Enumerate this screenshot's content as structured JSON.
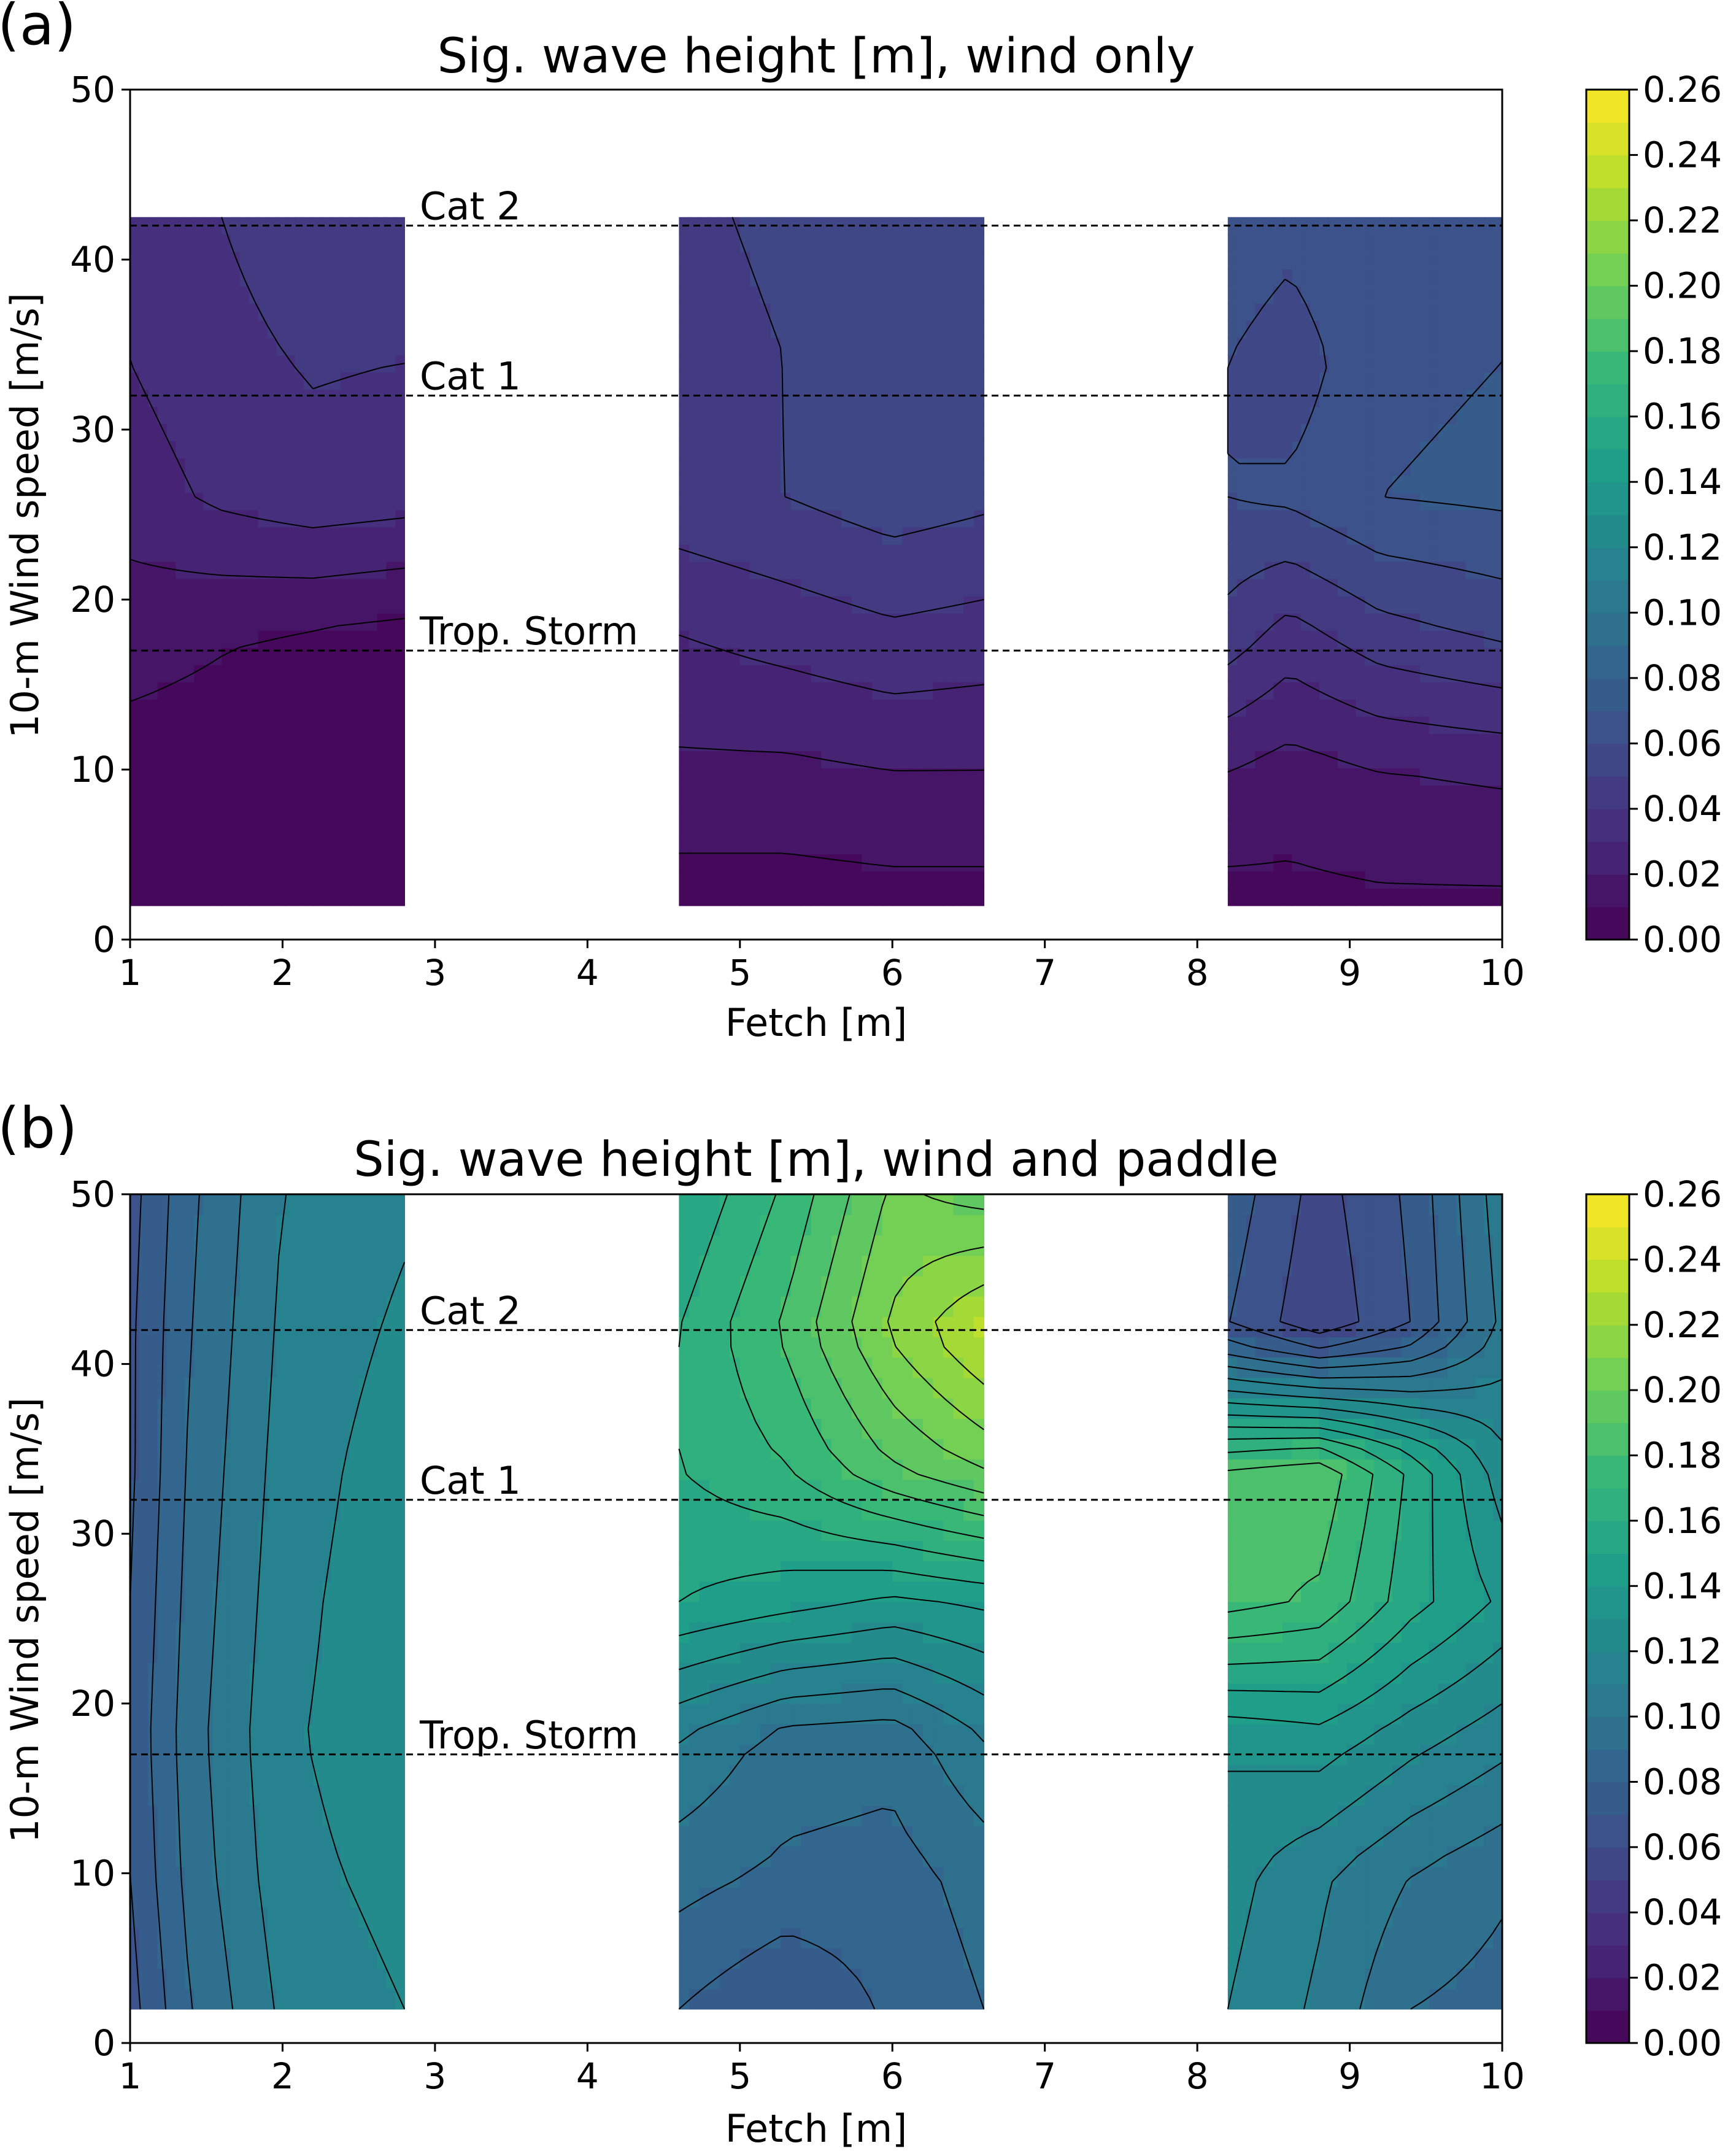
{
  "figure": {
    "colorscale": "viridis"
  },
  "chart_data": [
    {
      "type": "heatmap",
      "panel_label": "(a)",
      "title": "Sig. wave height [m], wind only",
      "xlabel": "Fetch [m]",
      "ylabel": "10-m Wind speed [m/s]",
      "xlim": [
        1,
        10
      ],
      "ylim": [
        0,
        50
      ],
      "xticks": [
        1,
        2,
        3,
        4,
        5,
        6,
        7,
        8,
        9,
        10
      ],
      "yticks": [
        0,
        10,
        20,
        30,
        40,
        50
      ],
      "colorbar": {
        "range": [
          0,
          0.26
        ],
        "ticks": [
          "0.00",
          "0.02",
          "0.04",
          "0.06",
          "0.08",
          "0.10",
          "0.12",
          "0.14",
          "0.16",
          "0.18",
          "0.20",
          "0.22",
          "0.24",
          "0.26"
        ]
      },
      "reference_lines": [
        {
          "label": "Cat 2",
          "y": 42
        },
        {
          "label": "Cat 1",
          "y": 32
        },
        {
          "label": "Trop. Storm",
          "y": 17
        }
      ],
      "blocks": [
        {
          "x": [
            1.0,
            1.6,
            2.2,
            2.8
          ],
          "y": [
            2,
            10,
            18,
            26,
            34,
            42.5
          ],
          "values": [
            [
              0.001,
              0.001,
              0.001,
              0.001
            ],
            [
              0.006,
              0.005,
              0.003,
              0.001
            ],
            [
              0.014,
              0.011,
              0.009,
              0.007
            ],
            [
              0.025,
              0.032,
              0.036,
              0.034
            ],
            [
              0.03,
              0.037,
              0.041,
              0.04
            ],
            [
              0.033,
              0.04,
              0.046,
              0.05
            ]
          ]
        },
        {
          "x": [
            4.6,
            5.3,
            6.0,
            6.6
          ],
          "y": [
            2,
            10,
            18,
            26,
            34,
            42.5
          ],
          "values": [
            [
              0.005,
              0.005,
              0.006,
              0.006
            ],
            [
              0.018,
              0.018,
              0.02,
              0.02
            ],
            [
              0.03,
              0.034,
              0.038,
              0.036
            ],
            [
              0.046,
              0.05,
              0.055,
              0.052
            ],
            [
              0.048,
              0.05,
              0.06,
              0.056
            ],
            [
              0.049,
              0.051,
              0.058,
              0.06
            ]
          ]
        },
        {
          "x": [
            8.2,
            8.6,
            9.2,
            10.0
          ],
          "y": [
            2,
            10,
            18,
            26,
            34,
            42.5
          ],
          "values": [
            [
              0.006,
              0.007,
              0.008,
              0.008
            ],
            [
              0.02,
              0.016,
              0.02,
              0.022
            ],
            [
              0.046,
              0.036,
              0.046,
              0.052
            ],
            [
              0.06,
              0.062,
              0.07,
              0.072
            ],
            [
              0.06,
              0.054,
              0.068,
              0.07
            ],
            [
              0.068,
              0.064,
              0.07,
              0.068
            ]
          ]
        }
      ]
    },
    {
      "type": "heatmap",
      "panel_label": "(b)",
      "title": "Sig. wave height [m], wind and paddle",
      "xlabel": "Fetch [m]",
      "ylabel": "10-m Wind speed [m/s]",
      "xlim": [
        1,
        10
      ],
      "ylim": [
        0,
        50
      ],
      "xticks": [
        1,
        2,
        3,
        4,
        5,
        6,
        7,
        8,
        9,
        10
      ],
      "yticks": [
        0,
        10,
        20,
        30,
        40,
        50
      ],
      "colorbar": {
        "range": [
          0,
          0.26
        ],
        "ticks": [
          "0.00",
          "0.02",
          "0.04",
          "0.06",
          "0.08",
          "0.10",
          "0.12",
          "0.14",
          "0.16",
          "0.18",
          "0.20",
          "0.22",
          "0.24",
          "0.26"
        ]
      },
      "reference_lines": [
        {
          "label": "Cat 2",
          "y": 42
        },
        {
          "label": "Cat 1",
          "y": 32
        },
        {
          "label": "Trop. Storm",
          "y": 17
        }
      ],
      "blocks": [
        {
          "x": [
            1.0,
            1.4,
            2.0,
            2.8
          ],
          "y": [
            2,
            10,
            18,
            26,
            34,
            42,
            50
          ],
          "values": [
            [
              0.066,
              0.09,
              0.112,
              0.12
            ],
            [
              0.07,
              0.094,
              0.116,
              0.124
            ],
            [
              0.072,
              0.096,
              0.118,
              0.128
            ],
            [
              0.07,
              0.094,
              0.116,
              0.128
            ],
            [
              0.068,
              0.092,
              0.114,
              0.126
            ],
            [
              0.068,
              0.09,
              0.112,
              0.122
            ],
            [
              0.066,
              0.088,
              0.11,
              0.118
            ]
          ]
        },
        {
          "x": [
            4.6,
            5.3,
            6.0,
            6.6
          ],
          "y": [
            2,
            10,
            18,
            26,
            34,
            42,
            50
          ],
          "values": [
            [
              0.08,
              0.07,
              0.082,
              0.09
            ],
            [
              0.094,
              0.088,
              0.086,
              0.094
            ],
            [
              0.11,
              0.096,
              0.094,
              0.11
            ],
            [
              0.15,
              0.144,
              0.138,
              0.142
            ],
            [
              0.16,
              0.17,
              0.19,
              0.202
            ],
            [
              0.16,
              0.182,
              0.212,
              0.232
            ],
            [
              0.15,
              0.172,
              0.202,
              0.196
            ]
          ]
        },
        {
          "x": [
            8.2,
            8.8,
            9.4,
            10.0
          ],
          "y": [
            2,
            10,
            18,
            26,
            34,
            42,
            50
          ],
          "values": [
            [
              0.12,
              0.108,
              0.09,
              0.086
            ],
            [
              0.124,
              0.112,
              0.1,
              0.092
            ],
            [
              0.132,
              0.136,
              0.124,
              0.114
            ],
            [
              0.184,
              0.178,
              0.154,
              0.138
            ],
            [
              0.182,
              0.188,
              0.158,
              0.124
            ],
            [
              0.07,
              0.052,
              0.07,
              0.102
            ],
            [
              0.076,
              0.056,
              0.072,
              0.106
            ]
          ]
        }
      ]
    }
  ]
}
